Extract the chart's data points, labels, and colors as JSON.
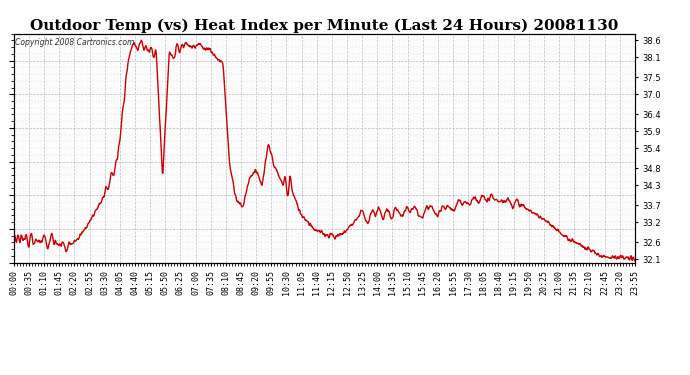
{
  "title": "Outdoor Temp (vs) Heat Index per Minute (Last 24 Hours) 20081130",
  "copyright_text": "Copyright 2008 Cartronics.com",
  "line_color": "#cc0000",
  "background_color": "#ffffff",
  "grid_color": "#aaaaaa",
  "yticks": [
    32.1,
    32.6,
    33.2,
    33.7,
    34.3,
    34.8,
    35.4,
    35.9,
    36.4,
    37.0,
    37.5,
    38.1,
    38.6
  ],
  "ylim": [
    32.0,
    38.8
  ],
  "xtick_labels": [
    "00:00",
    "00:35",
    "01:10",
    "01:45",
    "02:20",
    "02:55",
    "03:30",
    "04:05",
    "04:40",
    "05:15",
    "05:50",
    "06:25",
    "07:00",
    "07:35",
    "08:10",
    "08:45",
    "09:20",
    "09:55",
    "10:30",
    "11:05",
    "11:40",
    "12:15",
    "12:50",
    "13:25",
    "14:00",
    "14:35",
    "15:10",
    "15:45",
    "16:20",
    "16:55",
    "17:30",
    "18:05",
    "18:40",
    "19:15",
    "19:50",
    "20:25",
    "21:00",
    "21:35",
    "22:10",
    "22:45",
    "23:20",
    "23:55"
  ],
  "line_width": 1.0,
  "title_fontsize": 11,
  "tick_fontsize": 6.0,
  "figsize": [
    6.9,
    3.75
  ],
  "dpi": 100
}
